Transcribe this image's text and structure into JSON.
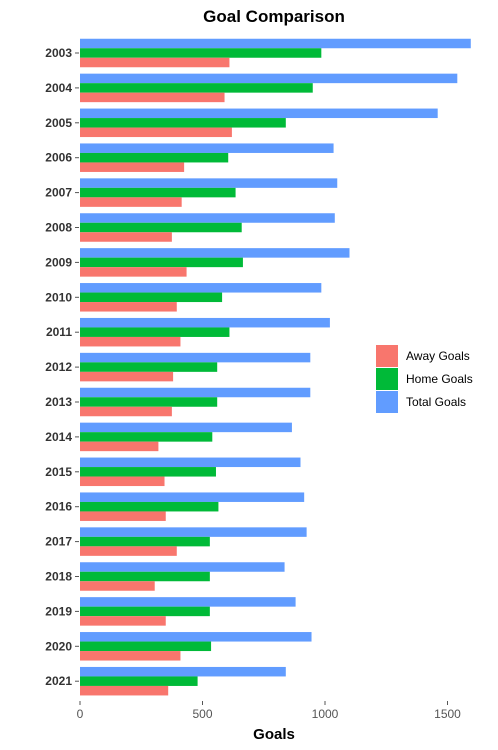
{
  "chart_data": {
    "type": "bar",
    "orientation": "horizontal",
    "title": "Goal Comparison",
    "xlabel": "Goals",
    "ylabel": "",
    "xlim": [
      0,
      1600
    ],
    "x_ticks": [
      "0",
      "500",
      "1000",
      "1500"
    ],
    "categories": [
      "2003",
      "2004",
      "2005",
      "2006",
      "2007",
      "2008",
      "2009",
      "2010",
      "2011",
      "2012",
      "2013",
      "2014",
      "2015",
      "2016",
      "2017",
      "2018",
      "2019",
      "2020",
      "2021"
    ],
    "series": [
      {
        "name": "Away Goals",
        "color": "#F8766D",
        "values": [
          610,
          590,
          620,
          425,
          415,
          375,
          435,
          395,
          410,
          380,
          375,
          320,
          345,
          350,
          395,
          305,
          350,
          410,
          360
        ]
      },
      {
        "name": "Home Goals",
        "color": "#00BA38",
        "values": [
          985,
          950,
          840,
          605,
          635,
          660,
          665,
          580,
          610,
          560,
          560,
          540,
          555,
          565,
          530,
          530,
          530,
          535,
          480
        ]
      },
      {
        "name": "Total Goals",
        "color": "#619CFF",
        "values": [
          1595,
          1540,
          1460,
          1035,
          1050,
          1040,
          1100,
          985,
          1020,
          940,
          940,
          865,
          900,
          915,
          925,
          835,
          880,
          945,
          840
        ]
      }
    ],
    "grid": false,
    "legend_position": "right"
  }
}
